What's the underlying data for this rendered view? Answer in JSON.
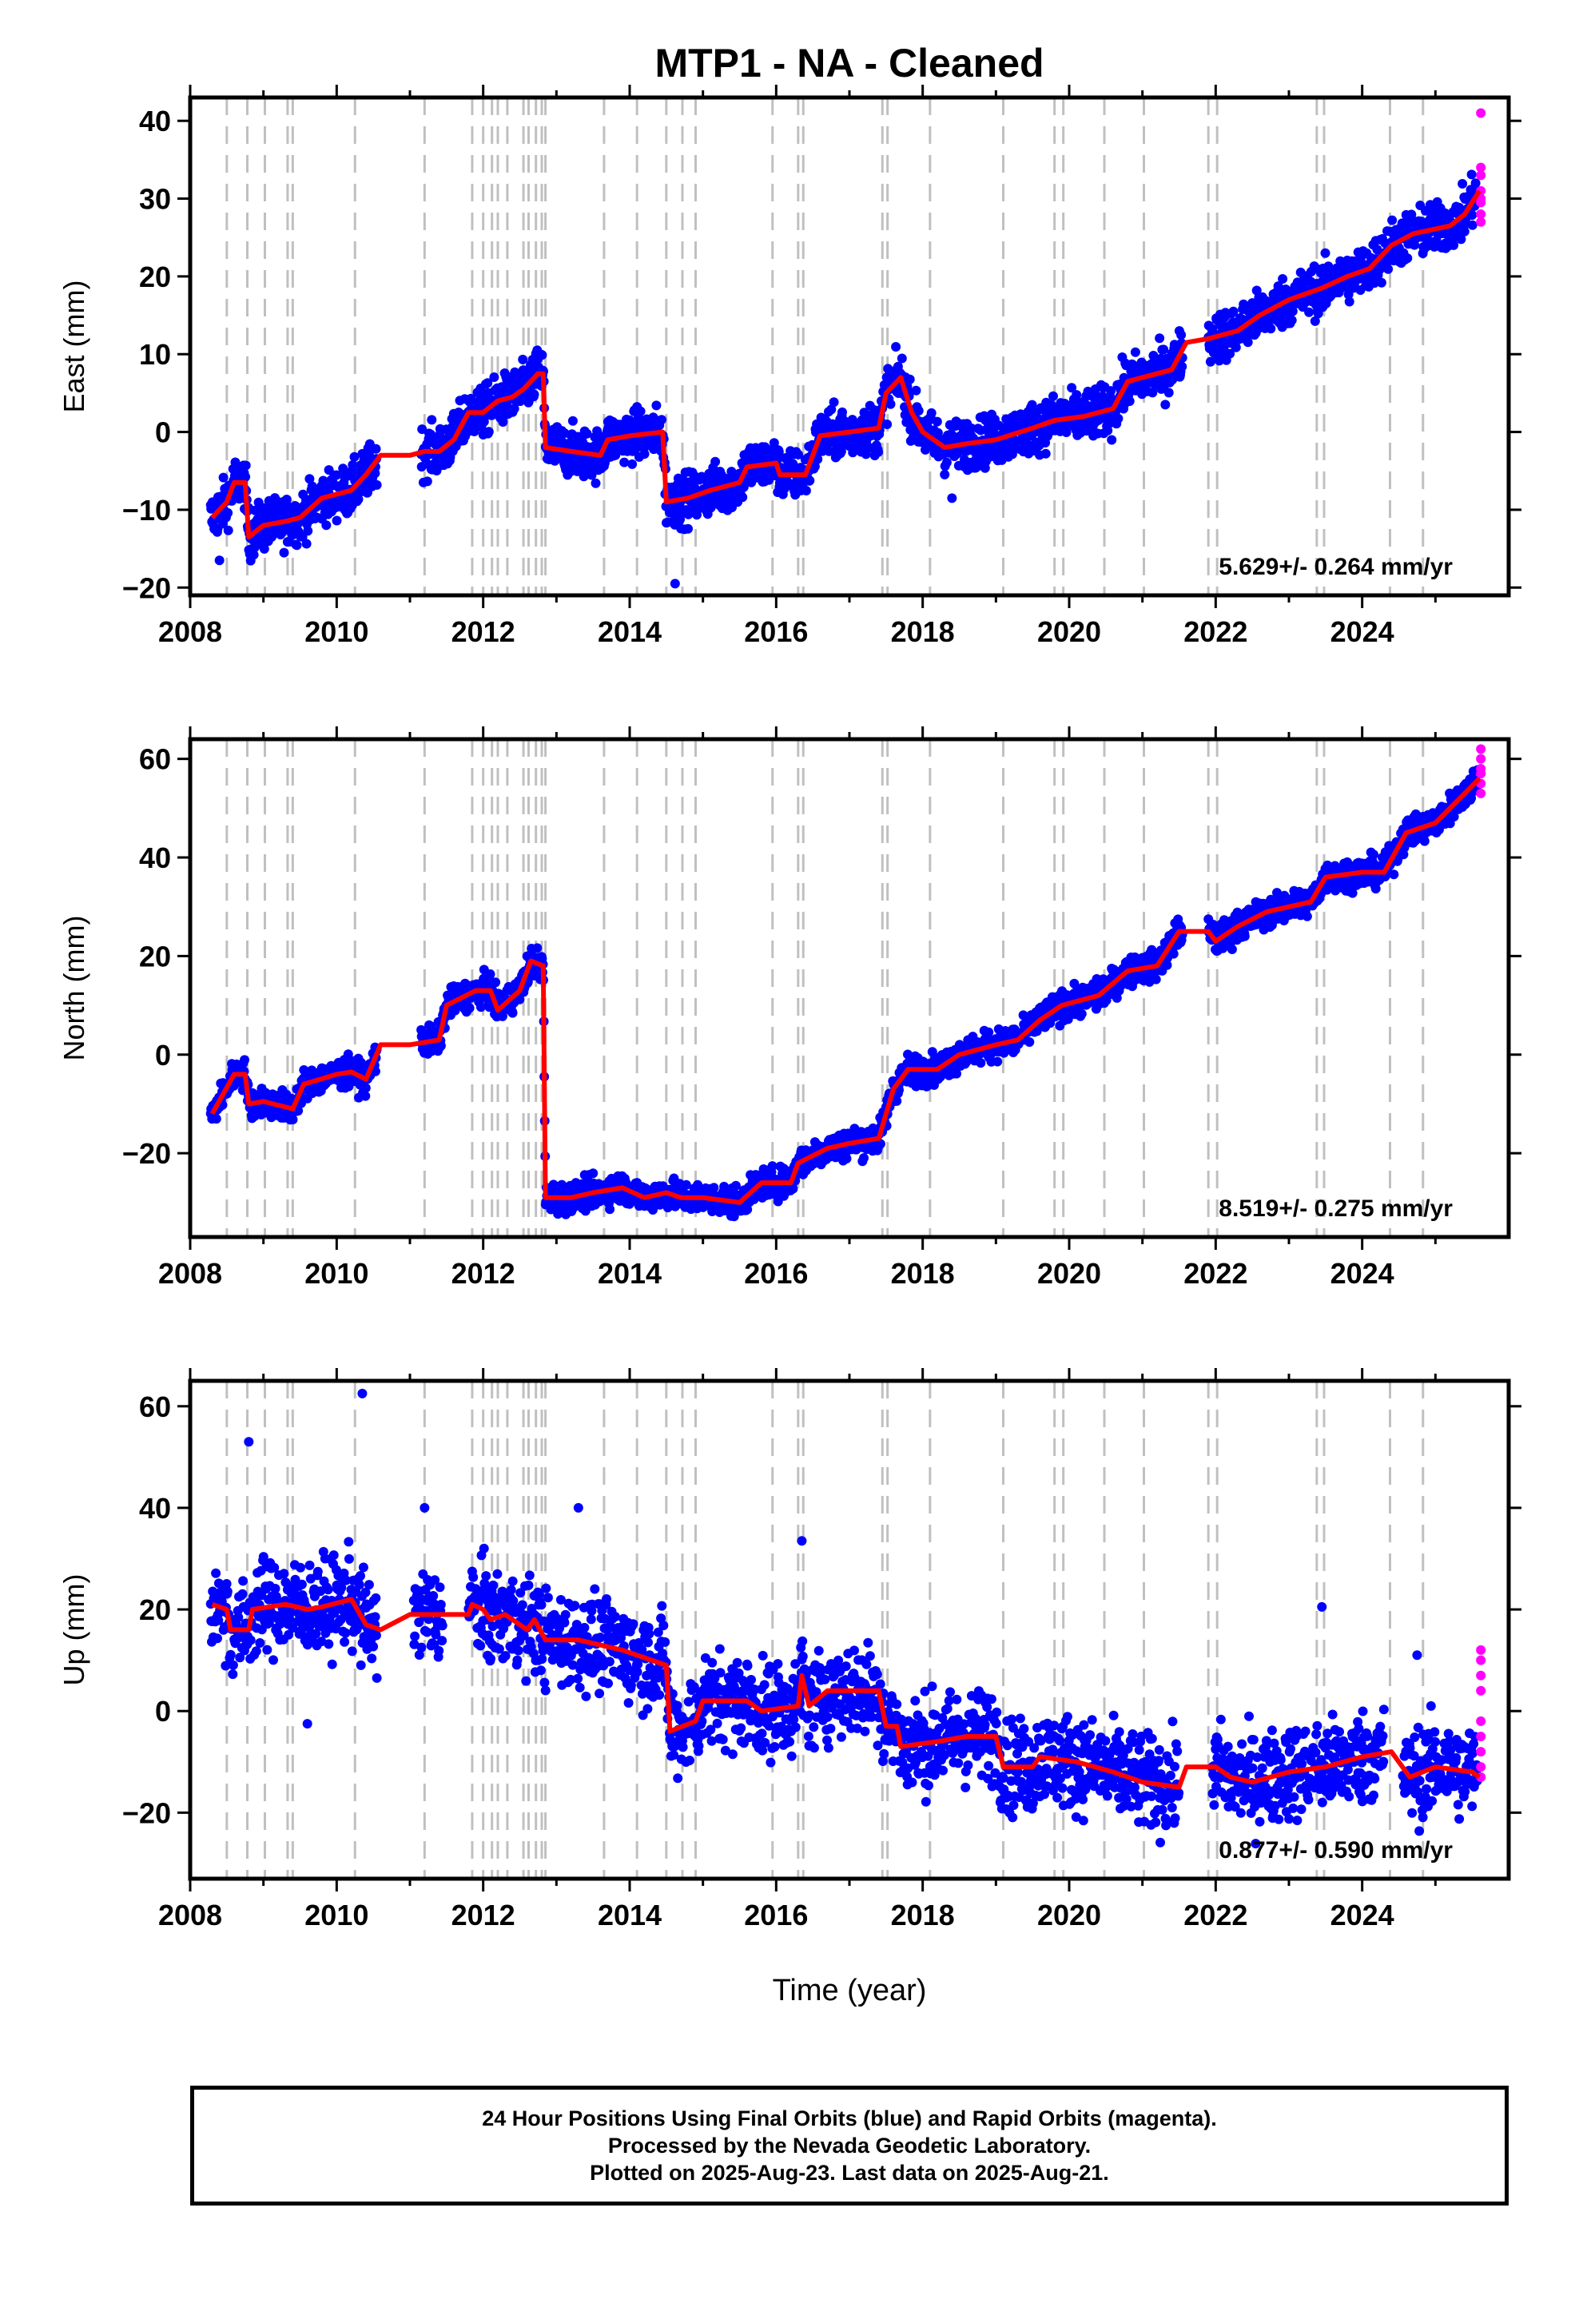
{
  "chart_data": {
    "type": "scatter",
    "title": "MTP1  - NA - Cleaned",
    "xlabel": "Time (year)",
    "xlim": [
      2008.0,
      2026.0
    ],
    "xticks": [
      2008,
      2010,
      2012,
      2014,
      2016,
      2018,
      2020,
      2022,
      2024
    ],
    "offset_epochs": [
      2008.5,
      2008.78,
      2009.02,
      2009.33,
      2009.4,
      2010.25,
      2011.2,
      2011.85,
      2012.0,
      2012.12,
      2012.2,
      2012.33,
      2012.55,
      2012.62,
      2012.72,
      2012.8,
      2012.85,
      2013.65,
      2014.1,
      2014.5,
      2014.72,
      2014.9,
      2015.95,
      2016.3,
      2016.37,
      2017.45,
      2017.52,
      2018.1,
      2019.1,
      2019.8,
      2019.92,
      2020.48,
      2021.02,
      2021.9,
      2022.02,
      2023.38,
      2023.48,
      2024.38,
      2024.83
    ],
    "panels": [
      {
        "ylabel": "East (mm)",
        "ylim": [
          -21,
          43
        ],
        "yticks": [
          -20,
          -10,
          0,
          10,
          20,
          30,
          40
        ],
        "rate": "5.629+/- 0.264 mm/yr",
        "model": [
          [
            2008.3,
            -11
          ],
          [
            2008.5,
            -9
          ],
          [
            2008.6,
            -6.5
          ],
          [
            2008.75,
            -6.5
          ],
          [
            2008.8,
            -13.5
          ],
          [
            2009.0,
            -12
          ],
          [
            2009.3,
            -11.5
          ],
          [
            2009.5,
            -11
          ],
          [
            2009.8,
            -8.5
          ],
          [
            2010.2,
            -7.5
          ],
          [
            2010.4,
            -5.5
          ],
          [
            2010.6,
            -3
          ],
          [
            2011.0,
            -3
          ],
          [
            2011.2,
            -2.5
          ],
          [
            2011.4,
            -2.5
          ],
          [
            2011.6,
            -1
          ],
          [
            2011.8,
            2.5
          ],
          [
            2012.0,
            2.5
          ],
          [
            2012.2,
            4
          ],
          [
            2012.4,
            4.5
          ],
          [
            2012.55,
            5.5
          ],
          [
            2012.75,
            7.5
          ],
          [
            2012.82,
            7.5
          ],
          [
            2012.85,
            -2
          ],
          [
            2013.2,
            -2.5
          ],
          [
            2013.6,
            -3
          ],
          [
            2013.7,
            -1
          ],
          [
            2014.0,
            -0.5
          ],
          [
            2014.45,
            0
          ],
          [
            2014.5,
            -9
          ],
          [
            2014.8,
            -8.5
          ],
          [
            2015.1,
            -7.5
          ],
          [
            2015.5,
            -6.5
          ],
          [
            2015.6,
            -4.5
          ],
          [
            2016.0,
            -4
          ],
          [
            2016.05,
            -5.5
          ],
          [
            2016.4,
            -5.5
          ],
          [
            2016.6,
            -0.5
          ],
          [
            2017.0,
            0
          ],
          [
            2017.4,
            0.5
          ],
          [
            2017.5,
            5
          ],
          [
            2017.7,
            7
          ],
          [
            2017.85,
            2.5
          ],
          [
            2018.0,
            0
          ],
          [
            2018.3,
            -2
          ],
          [
            2018.6,
            -1.5
          ],
          [
            2019.0,
            -1
          ],
          [
            2019.5,
            0.5
          ],
          [
            2019.8,
            1.5
          ],
          [
            2020.2,
            2
          ],
          [
            2020.6,
            3
          ],
          [
            2020.8,
            6.5
          ],
          [
            2021.4,
            8
          ],
          [
            2021.6,
            11.5
          ],
          [
            2021.9,
            12
          ],
          [
            2022.3,
            13
          ],
          [
            2022.6,
            15
          ],
          [
            2023.0,
            17
          ],
          [
            2023.45,
            18.5
          ],
          [
            2023.8,
            20
          ],
          [
            2024.1,
            21
          ],
          [
            2024.4,
            24
          ],
          [
            2024.7,
            25.5
          ],
          [
            2025.2,
            26.5
          ],
          [
            2025.4,
            28
          ],
          [
            2025.6,
            31
          ]
        ],
        "blue": {
          "start": 2008.28,
          "end": 2025.58,
          "noise": 1.6,
          "step": 0.006,
          "gaps": [
            [
              2010.55,
              2011.15
            ],
            [
              2021.55,
              2021.9
            ]
          ],
          "outliers": [
            [
              2014.62,
              -19.5
            ],
            [
              2018.4,
              -8.5
            ],
            [
              2008.4,
              -16.5
            ]
          ]
        },
        "magenta": {
          "x": 2025.62,
          "values": [
            41,
            34,
            33,
            31,
            30,
            29.5,
            28,
            27
          ]
        }
      },
      {
        "ylabel": "North (mm)",
        "ylim": [
          -37,
          64
        ],
        "yticks": [
          -20,
          0,
          20,
          40,
          60
        ],
        "rate": "8.519+/- 0.275 mm/yr",
        "model": [
          [
            2008.3,
            -12
          ],
          [
            2008.6,
            -4
          ],
          [
            2008.75,
            -4
          ],
          [
            2008.8,
            -10
          ],
          [
            2009.0,
            -9.5
          ],
          [
            2009.4,
            -11
          ],
          [
            2009.55,
            -6
          ],
          [
            2010.0,
            -4
          ],
          [
            2010.2,
            -3.5
          ],
          [
            2010.4,
            -5
          ],
          [
            2010.6,
            2
          ],
          [
            2011.0,
            2
          ],
          [
            2011.4,
            3
          ],
          [
            2011.5,
            10
          ],
          [
            2011.9,
            13
          ],
          [
            2012.1,
            13
          ],
          [
            2012.2,
            9
          ],
          [
            2012.5,
            13
          ],
          [
            2012.65,
            19
          ],
          [
            2012.82,
            18
          ],
          [
            2012.85,
            -29
          ],
          [
            2013.2,
            -29
          ],
          [
            2013.5,
            -28
          ],
          [
            2013.9,
            -27
          ],
          [
            2014.2,
            -29
          ],
          [
            2014.5,
            -28
          ],
          [
            2014.7,
            -29
          ],
          [
            2015.0,
            -29
          ],
          [
            2015.5,
            -30
          ],
          [
            2015.8,
            -26
          ],
          [
            2016.2,
            -26
          ],
          [
            2016.3,
            -22
          ],
          [
            2016.7,
            -19
          ],
          [
            2017.0,
            -18
          ],
          [
            2017.4,
            -17
          ],
          [
            2017.6,
            -7
          ],
          [
            2017.8,
            -3
          ],
          [
            2018.2,
            -3
          ],
          [
            2018.5,
            0
          ],
          [
            2019.0,
            2
          ],
          [
            2019.3,
            3
          ],
          [
            2019.6,
            7
          ],
          [
            2019.9,
            10
          ],
          [
            2020.4,
            12
          ],
          [
            2020.8,
            17
          ],
          [
            2021.2,
            18
          ],
          [
            2021.5,
            25
          ],
          [
            2021.9,
            25
          ],
          [
            2022.0,
            23
          ],
          [
            2022.3,
            26
          ],
          [
            2022.7,
            29
          ],
          [
            2023.3,
            31
          ],
          [
            2023.5,
            36
          ],
          [
            2024.0,
            37
          ],
          [
            2024.3,
            37
          ],
          [
            2024.6,
            45
          ],
          [
            2025.0,
            47
          ],
          [
            2025.6,
            56
          ]
        ],
        "blue": {
          "start": 2008.28,
          "end": 2025.58,
          "noise": 1.5,
          "step": 0.006,
          "gaps": [
            [
              2010.55,
              2011.15
            ],
            [
              2021.55,
              2021.9
            ]
          ],
          "outliers": []
        },
        "magenta": {
          "x": 2025.62,
          "values": [
            62,
            60,
            58,
            57,
            55,
            53
          ]
        }
      },
      {
        "ylabel": "Up (mm)",
        "ylim": [
          -33,
          65
        ],
        "yticks": [
          -20,
          0,
          20,
          40,
          60
        ],
        "rate": "0.877+/- 0.590 mm/yr",
        "model": [
          [
            2008.3,
            21
          ],
          [
            2008.5,
            20
          ],
          [
            2008.55,
            16
          ],
          [
            2008.8,
            16
          ],
          [
            2008.85,
            20
          ],
          [
            2009.3,
            21
          ],
          [
            2009.6,
            20
          ],
          [
            2009.8,
            20.5
          ],
          [
            2010.2,
            22
          ],
          [
            2010.4,
            17
          ],
          [
            2010.6,
            16
          ],
          [
            2011.0,
            19
          ],
          [
            2011.2,
            19
          ],
          [
            2011.8,
            19
          ],
          [
            2011.85,
            21
          ],
          [
            2012.0,
            20
          ],
          [
            2012.1,
            18
          ],
          [
            2012.3,
            19
          ],
          [
            2012.6,
            16
          ],
          [
            2012.7,
            18
          ],
          [
            2012.85,
            14
          ],
          [
            2013.3,
            14
          ],
          [
            2013.6,
            13
          ],
          [
            2013.9,
            12
          ],
          [
            2014.3,
            10
          ],
          [
            2014.5,
            9
          ],
          [
            2014.55,
            -4
          ],
          [
            2014.9,
            -2
          ],
          [
            2015.0,
            2
          ],
          [
            2015.6,
            2
          ],
          [
            2015.8,
            0
          ],
          [
            2016.3,
            1
          ],
          [
            2016.35,
            7
          ],
          [
            2016.45,
            1
          ],
          [
            2016.7,
            4
          ],
          [
            2017.4,
            4
          ],
          [
            2017.5,
            -3
          ],
          [
            2017.65,
            -3
          ],
          [
            2017.7,
            -7
          ],
          [
            2018.2,
            -6
          ],
          [
            2018.6,
            -5
          ],
          [
            2019.0,
            -5
          ],
          [
            2019.1,
            -11
          ],
          [
            2019.5,
            -11
          ],
          [
            2019.6,
            -9
          ],
          [
            2020.1,
            -10
          ],
          [
            2020.6,
            -12
          ],
          [
            2021.0,
            -14
          ],
          [
            2021.5,
            -15
          ],
          [
            2021.6,
            -11
          ],
          [
            2022.0,
            -11
          ],
          [
            2022.2,
            -13
          ],
          [
            2022.5,
            -14
          ],
          [
            2023.0,
            -12
          ],
          [
            2023.5,
            -11
          ],
          [
            2024.0,
            -9
          ],
          [
            2024.4,
            -8
          ],
          [
            2024.65,
            -13
          ],
          [
            2025.0,
            -11
          ],
          [
            2025.5,
            -12
          ],
          [
            2025.6,
            -13
          ]
        ],
        "blue": {
          "start": 2008.28,
          "end": 2025.58,
          "noise": 4.6,
          "step": 0.007,
          "gaps": [
            [
              2010.55,
              2011.05
            ],
            [
              2011.45,
              2011.8
            ],
            [
              2021.5,
              2021.95
            ],
            [
              2024.3,
              2024.55
            ]
          ],
          "outliers": [
            [
              2008.8,
              53
            ],
            [
              2010.35,
              62.5
            ],
            [
              2011.2,
              40
            ],
            [
              2013.3,
              40
            ],
            [
              2016.35,
              33.5
            ],
            [
              2023.45,
              20.5
            ],
            [
              2009.6,
              -2.5
            ],
            [
              2024.75,
              11
            ]
          ]
        },
        "magenta": {
          "x": 2025.62,
          "values": [
            12,
            10,
            7,
            4,
            -2,
            -5,
            -8,
            -11,
            -13
          ]
        }
      }
    ],
    "colors": {
      "final": "#0000ff",
      "rapid": "#ff00ff",
      "model": "#ff0000",
      "offsets": "#c0c0c0"
    }
  },
  "footer": {
    "line1": "24 Hour Positions Using Final Orbits (blue) and Rapid Orbits (magenta).",
    "line2": "Processed by the Nevada Geodetic Laboratory.",
    "line3": "Plotted on 2025-Aug-23. Last data on 2025-Aug-21."
  }
}
